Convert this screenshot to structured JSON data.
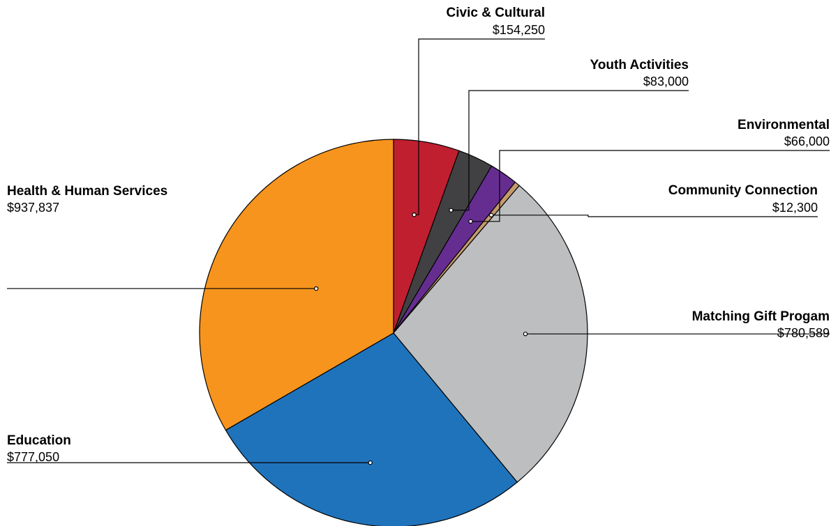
{
  "chart_data": {
    "type": "pie",
    "title": "",
    "slices": [
      {
        "label": "Civic & Cultural",
        "value_label": "$154,250",
        "value": 154250,
        "color": "#c01f30"
      },
      {
        "label": "Youth Activities",
        "value_label": "$83,000",
        "value": 83000,
        "color": "#414143"
      },
      {
        "label": "Environmental",
        "value_label": "$66,000",
        "value": 66000,
        "color": "#662d91"
      },
      {
        "label": "Community Connection",
        "value_label": "$12,300",
        "value": 12300,
        "color": "#c49a6c"
      },
      {
        "label": "Matching Gift Progam",
        "value_label": "$780,589",
        "value": 780589,
        "color": "#bdbec0"
      },
      {
        "label": "Education",
        "value_label": "$777,050",
        "value": 777050,
        "color": "#1f73bb"
      },
      {
        "label": "Health & Human Services",
        "value_label": "$937,837",
        "value": 937837,
        "color": "#f6941e"
      }
    ]
  }
}
